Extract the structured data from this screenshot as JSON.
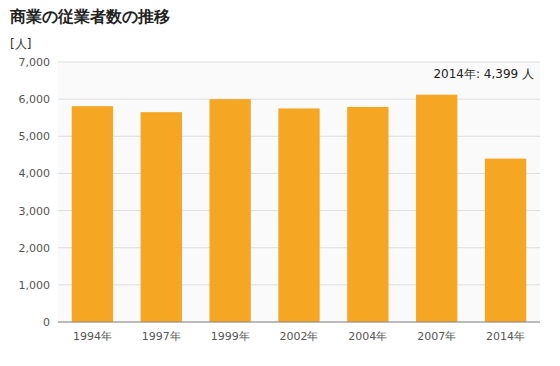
{
  "chart_data": {
    "type": "bar",
    "title": "商業の従業者数の推移",
    "y_label": "[人]",
    "annotation": "2014年: 4,399 人",
    "categories": [
      "1994年",
      "1997年",
      "1999年",
      "2002年",
      "2004年",
      "2007年",
      "2014年"
    ],
    "values": [
      5810,
      5650,
      6000,
      5750,
      5790,
      6120,
      4399
    ],
    "color": "#F5A623",
    "ylim": [
      0,
      7000
    ],
    "yticks": [
      0,
      {
        "value": 1000,
        "label": "1,000"
      },
      {
        "value": 2000,
        "label": "2,000"
      },
      {
        "value": 3000,
        "label": "3,000"
      },
      {
        "value": 4000,
        "label": "4,000"
      },
      {
        "value": 5000,
        "label": "5,000"
      },
      {
        "value": 6000,
        "label": "6,000"
      },
      {
        "value": 7000,
        "label": "7,000"
      }
    ],
    "grid": true
  }
}
